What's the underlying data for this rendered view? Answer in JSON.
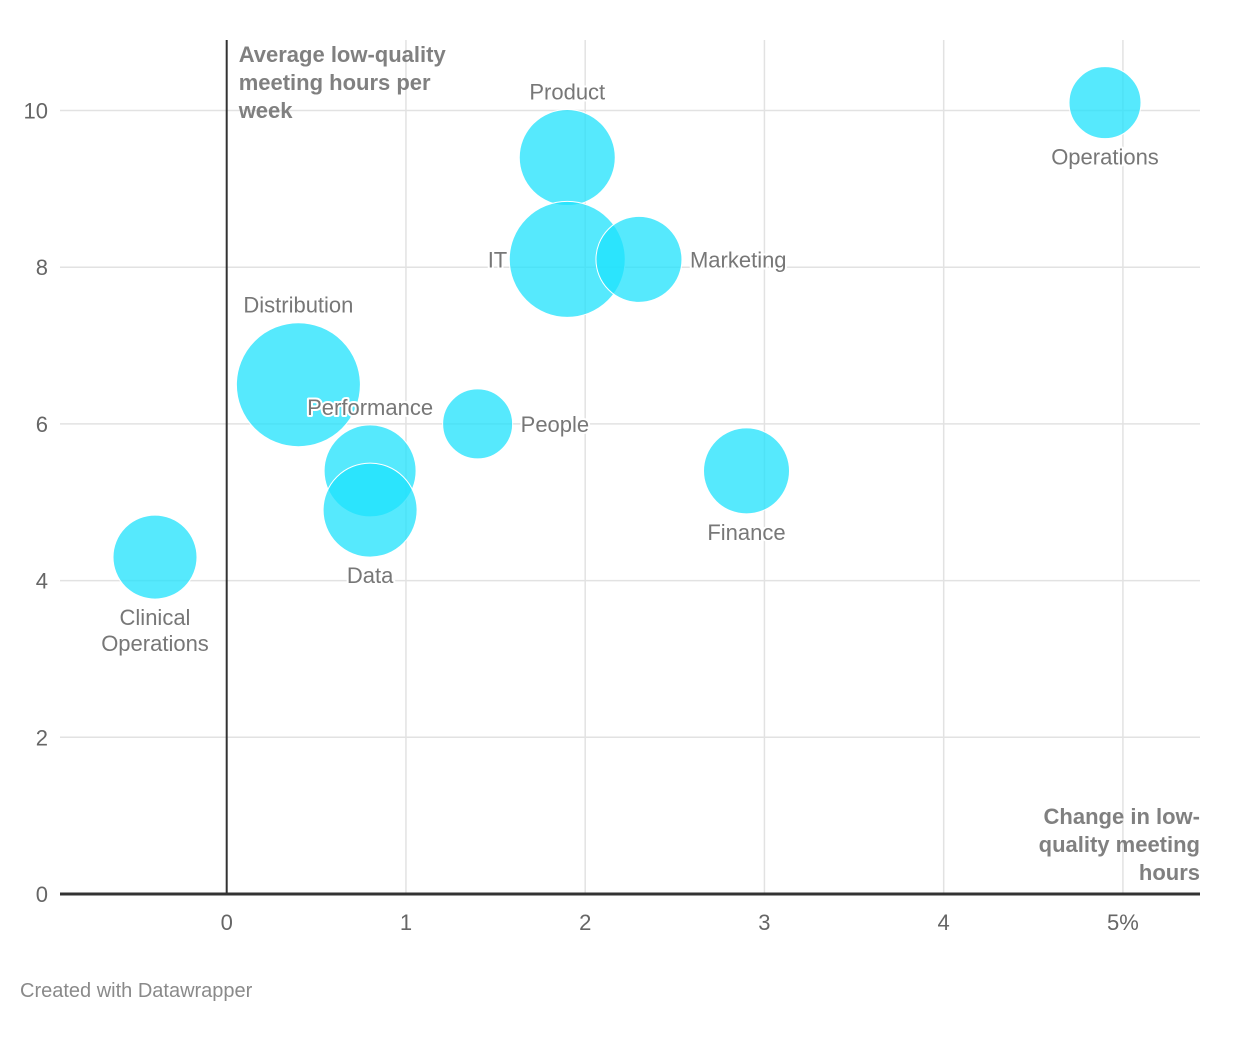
{
  "chart_data": {
    "type": "scatter",
    "xlabel": "Change in low-quality meeting hours",
    "ylabel": "Average low-quality meeting hours per week",
    "xlim": [
      -0.93,
      5.43
    ],
    "ylim": [
      0,
      10.9
    ],
    "x_ticks": [
      {
        "value": 0,
        "label": "0"
      },
      {
        "value": 1,
        "label": "1"
      },
      {
        "value": 2,
        "label": "2"
      },
      {
        "value": 3,
        "label": "3"
      },
      {
        "value": 4,
        "label": "4"
      },
      {
        "value": 5,
        "label": "5%"
      }
    ],
    "y_ticks": [
      {
        "value": 0,
        "label": "0"
      },
      {
        "value": 2,
        "label": "2"
      },
      {
        "value": 4,
        "label": "4"
      },
      {
        "value": 6,
        "label": "6"
      },
      {
        "value": 8,
        "label": "8"
      },
      {
        "value": 10,
        "label": "10"
      }
    ],
    "bubble_color": "#1de1fc",
    "points": [
      {
        "label": "Product",
        "x": 1.9,
        "y": 9.4,
        "size": 48,
        "label_pos": "above"
      },
      {
        "label": "Operations",
        "x": 4.9,
        "y": 10.1,
        "size": 36,
        "label_pos": "below"
      },
      {
        "label": "IT",
        "x": 1.9,
        "y": 8.1,
        "size": 58,
        "label_pos": "left"
      },
      {
        "label": "Marketing",
        "x": 2.3,
        "y": 8.1,
        "size": 43,
        "label_pos": "right"
      },
      {
        "label": "Distribution",
        "x": 0.4,
        "y": 6.5,
        "size": 62,
        "label_pos": "above"
      },
      {
        "label": "Performance",
        "x": 0.8,
        "y": 5.4,
        "size": 46,
        "label_pos": "above"
      },
      {
        "label": "People",
        "x": 1.4,
        "y": 6.0,
        "size": 35,
        "label_pos": "right"
      },
      {
        "label": "Finance",
        "x": 2.9,
        "y": 5.4,
        "size": 43,
        "label_pos": "below"
      },
      {
        "label": "Data",
        "x": 0.8,
        "y": 4.9,
        "size": 47,
        "label_pos": "below"
      },
      {
        "label": "Clinical Operations",
        "x": -0.4,
        "y": 4.3,
        "size": 42,
        "label_pos": "below"
      }
    ]
  },
  "credit": "Created with Datawrapper"
}
